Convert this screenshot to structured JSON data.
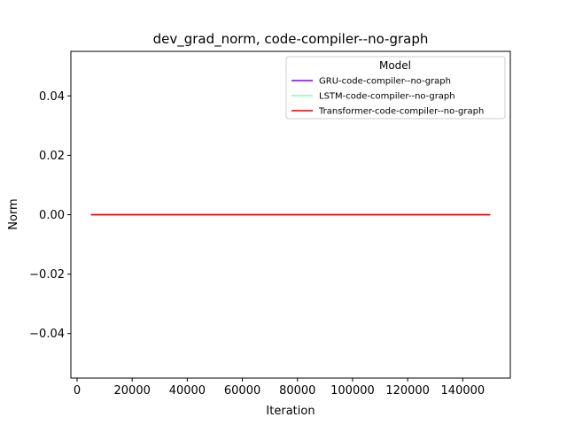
{
  "chart_data": {
    "type": "line",
    "title": "dev_grad_norm, code-compiler--no-graph",
    "xlabel": "Iteration",
    "ylabel": "Norm",
    "xlim": [
      -2250,
      157250
    ],
    "ylim": [
      -0.055,
      0.055
    ],
    "xticks": [
      0,
      20000,
      40000,
      60000,
      80000,
      100000,
      120000,
      140000
    ],
    "xtick_labels": [
      "0",
      "20000",
      "40000",
      "60000",
      "80000",
      "100000",
      "120000",
      "140000"
    ],
    "yticks": [
      -0.04,
      -0.02,
      0.0,
      0.02,
      0.04
    ],
    "ytick_labels": [
      "−0.04",
      "−0.02",
      "0.00",
      "0.02",
      "0.04"
    ],
    "grid": false,
    "legend": {
      "title": "Model",
      "placement": "top-right"
    },
    "series": [
      {
        "name": "GRU-code-compiler--no-graph",
        "color": "#7f00ff",
        "x": [
          5000,
          150000
        ],
        "y": [
          0.0,
          0.0
        ]
      },
      {
        "name": "LSTM-code-compiler--no-graph",
        "color": "#80ffb4",
        "x": [
          5000,
          150000
        ],
        "y": [
          0.0,
          0.0
        ]
      },
      {
        "name": "Transformer-code-compiler--no-graph",
        "color": "#e00000",
        "x": [
          5000,
          150000
        ],
        "y": [
          0.0,
          0.0
        ]
      }
    ]
  }
}
